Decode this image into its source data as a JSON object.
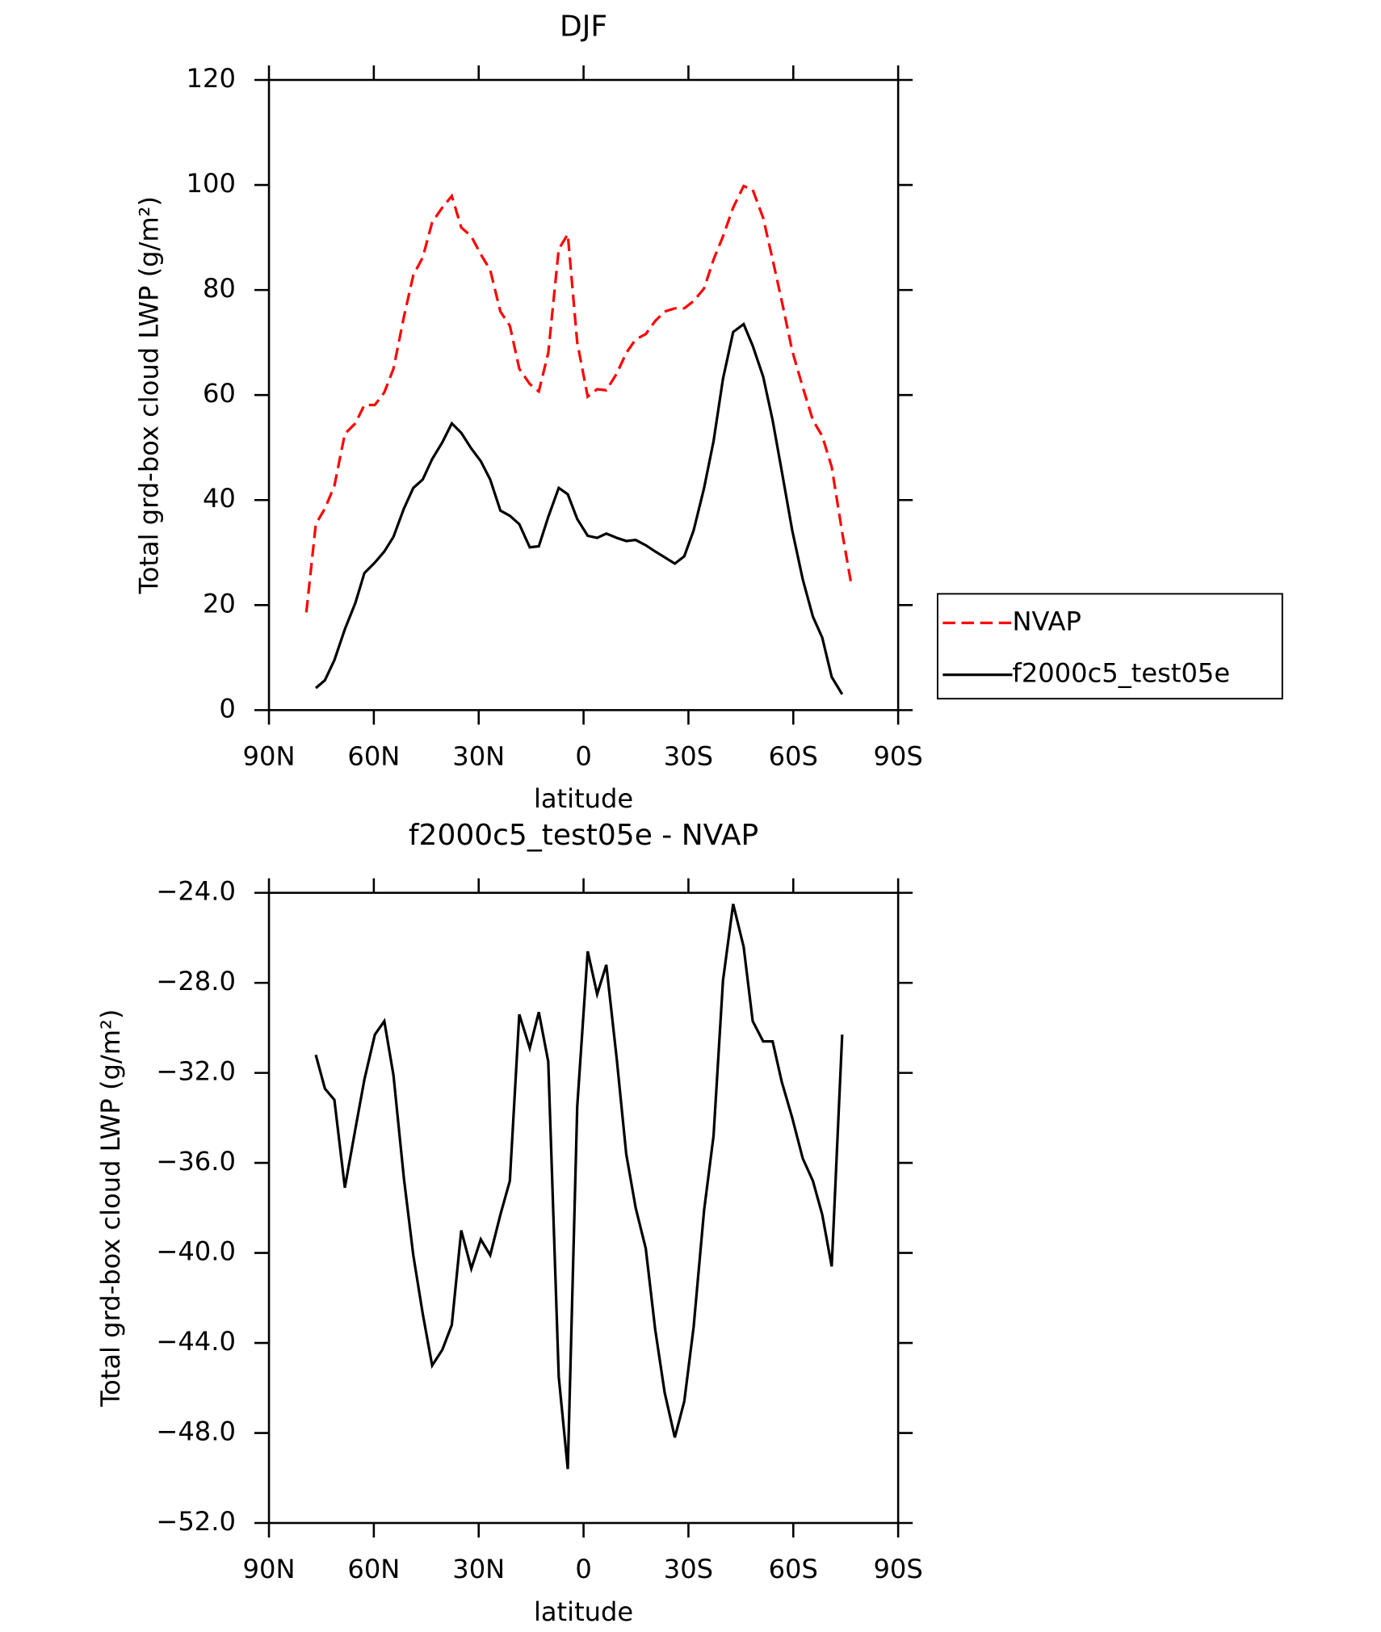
{
  "chart_data": [
    {
      "type": "line",
      "title": "DJF",
      "xlabel": "latitude",
      "ylabel": "Total grd-box cloud LWP (g/m²)",
      "xlim": [
        90,
        -90
      ],
      "ylim": [
        0,
        120
      ],
      "xticks": [
        {
          "value": 90,
          "label": "90N"
        },
        {
          "value": 60,
          "label": "60N"
        },
        {
          "value": 30,
          "label": "30N"
        },
        0,
        {
          "value": -30,
          "label": "30S"
        },
        {
          "value": -60,
          "label": "60S"
        },
        {
          "value": -90,
          "label": "90S"
        }
      ],
      "yticks": [
        0,
        20,
        40,
        60,
        80,
        100,
        120
      ],
      "legend": "outside-right",
      "series": [
        {
          "name": "NVAP",
          "color": "#ff0000",
          "line_style": "dashed",
          "x": [
            79.3,
            76.6,
            74.0,
            71.3,
            68.3,
            65.3,
            62.7,
            59.7,
            57.0,
            54.4,
            51.4,
            48.7,
            46.0,
            43.3,
            40.4,
            37.7,
            35.0,
            32.1,
            29.4,
            26.7,
            23.8,
            21.1,
            18.4,
            15.4,
            12.8,
            10.1,
            7.1,
            4.5,
            1.8,
            -1.2,
            -3.9,
            -6.5,
            -9.5,
            -12.2,
            -14.9,
            -17.8,
            -20.5,
            -23.2,
            -26.1,
            -28.8,
            -31.5,
            -34.5,
            -37.2,
            -39.9,
            -42.8,
            -45.8,
            -48.4,
            -51.4,
            -54.1,
            -56.7,
            -59.7,
            -62.7,
            -65.6,
            -68.3,
            -71.0,
            -74.0,
            -76.6
          ],
          "values": [
            18.6,
            35.4,
            38.4,
            42.7,
            52.6,
            54.6,
            58.1,
            58.1,
            60.5,
            65.0,
            74.9,
            82.8,
            86.2,
            92.9,
            95.7,
            97.9,
            91.9,
            90.2,
            86.8,
            83.8,
            75.9,
            73.2,
            65.0,
            62.1,
            60.7,
            68.0,
            87.8,
            90.6,
            70.0,
            59.7,
            61.1,
            60.9,
            64.1,
            68.0,
            70.6,
            71.6,
            74.1,
            75.9,
            76.5,
            76.5,
            77.9,
            80.3,
            85.8,
            90.2,
            95.7,
            99.8,
            99.1,
            93.7,
            85.8,
            77.9,
            68.4,
            61.5,
            55.2,
            52.2,
            46.3,
            33.8,
            23.9
          ]
        },
        {
          "name": "f2000c5_test05e",
          "color": "#000000",
          "line_style": "solid",
          "x": [
            76.6,
            74.0,
            71.3,
            68.3,
            65.3,
            62.7,
            59.7,
            57.0,
            54.4,
            51.4,
            48.7,
            46.0,
            43.3,
            40.4,
            37.7,
            35.0,
            32.1,
            29.4,
            26.7,
            23.8,
            21.1,
            18.4,
            15.4,
            12.8,
            10.1,
            7.1,
            4.5,
            1.8,
            -1.2,
            -3.9,
            -6.5,
            -9.5,
            -12.2,
            -14.9,
            -17.8,
            -20.5,
            -23.2,
            -26.1,
            -28.8,
            -31.5,
            -34.5,
            -37.2,
            -39.9,
            -42.8,
            -45.8,
            -48.4,
            -51.4,
            -54.1,
            -56.7,
            -59.7,
            -62.7,
            -65.6,
            -68.3,
            -71.0,
            -74.0
          ],
          "values": [
            4.2,
            5.7,
            9.5,
            15.4,
            20.4,
            26.1,
            28.1,
            30.2,
            33.0,
            38.4,
            42.3,
            43.9,
            47.8,
            51.0,
            54.6,
            52.8,
            49.8,
            47.4,
            43.9,
            38.0,
            37.0,
            35.4,
            31.0,
            31.2,
            36.8,
            42.3,
            41.1,
            36.4,
            33.2,
            32.8,
            33.6,
            32.8,
            32.2,
            32.4,
            31.4,
            30.2,
            29.1,
            27.9,
            29.3,
            34.2,
            42.3,
            51.2,
            63.1,
            72.0,
            73.5,
            69.4,
            63.5,
            55.2,
            45.5,
            34.2,
            24.9,
            17.8,
            13.8,
            6.3,
            3.0
          ]
        }
      ]
    },
    {
      "type": "line",
      "title": "f2000c5_test05e - NVAP",
      "xlabel": "latitude",
      "ylabel": "Total grd-box cloud LWP (g/m²)",
      "xlim": [
        90,
        -90
      ],
      "ylim": [
        -52,
        -24
      ],
      "xticks": [
        {
          "value": 90,
          "label": "90N"
        },
        {
          "value": 60,
          "label": "60N"
        },
        {
          "value": 30,
          "label": "30N"
        },
        0,
        {
          "value": -30,
          "label": "30S"
        },
        {
          "value": -60,
          "label": "60S"
        },
        {
          "value": -90,
          "label": "90S"
        }
      ],
      "yticks": [
        {
          "value": -52,
          "label": "−52.0"
        },
        {
          "value": -48,
          "label": "−48.0"
        },
        {
          "value": -44,
          "label": "−44.0"
        },
        {
          "value": -40,
          "label": "−40.0"
        },
        {
          "value": -36,
          "label": "−36.0"
        },
        {
          "value": -32,
          "label": "−32.0"
        },
        {
          "value": -28,
          "label": "−28.0"
        },
        {
          "value": -24,
          "label": "−24.0"
        }
      ],
      "series": [
        {
          "color": "#000000",
          "line_style": "solid",
          "x": [
            76.6,
            74.0,
            71.3,
            68.3,
            65.3,
            62.7,
            59.7,
            57.0,
            54.4,
            51.4,
            48.7,
            46.0,
            43.3,
            40.4,
            37.7,
            35.0,
            32.1,
            29.4,
            26.7,
            23.8,
            21.1,
            18.4,
            15.4,
            12.8,
            10.1,
            7.1,
            4.5,
            1.8,
            -1.2,
            -3.9,
            -6.5,
            -9.5,
            -12.2,
            -14.9,
            -17.8,
            -20.5,
            -23.2,
            -26.1,
            -28.8,
            -31.5,
            -34.5,
            -37.2,
            -39.9,
            -42.8,
            -45.8,
            -48.4,
            -51.4,
            -54.1,
            -56.7,
            -59.7,
            -62.7,
            -65.6,
            -68.3,
            -71.0,
            -74.0
          ],
          "values": [
            -31.2,
            -32.7,
            -33.2,
            -37.1,
            -34.5,
            -32.3,
            -30.3,
            -29.7,
            -32.1,
            -36.7,
            -40.1,
            -42.7,
            -45.0,
            -44.3,
            -43.2,
            -39.0,
            -40.7,
            -39.4,
            -40.1,
            -38.3,
            -36.8,
            -29.4,
            -30.9,
            -29.3,
            -31.5,
            -45.5,
            -49.6,
            -33.5,
            -26.6,
            -28.5,
            -27.2,
            -31.4,
            -35.6,
            -38.0,
            -39.8,
            -43.4,
            -46.2,
            -48.2,
            -46.6,
            -43.3,
            -38.1,
            -34.8,
            -27.9,
            -24.5,
            -26.4,
            -29.7,
            -30.6,
            -30.6,
            -32.4,
            -34.0,
            -35.8,
            -36.8,
            -38.3,
            -40.6,
            -30.3
          ]
        }
      ]
    }
  ]
}
